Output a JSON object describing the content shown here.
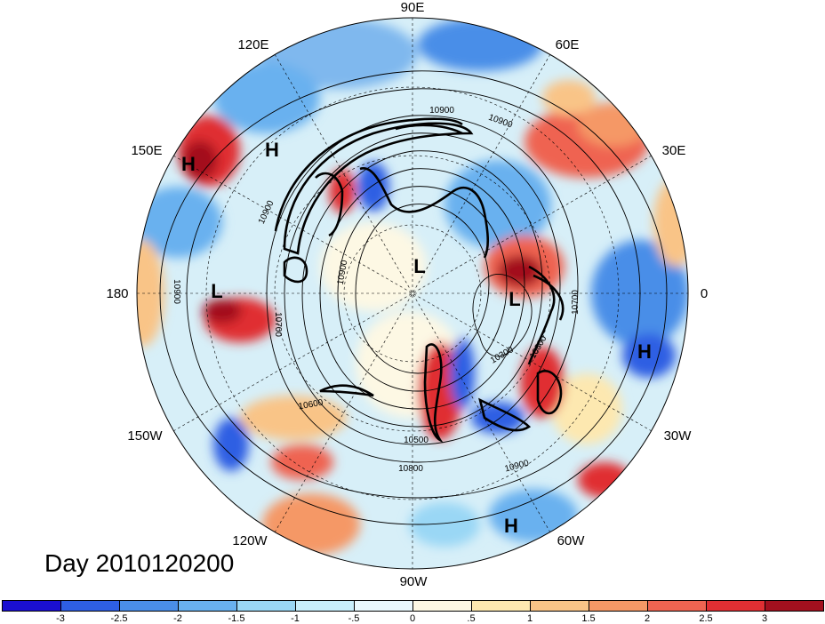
{
  "map": {
    "longitude_labels": [
      "90E",
      "60E",
      "30E",
      "0",
      "30W",
      "60W",
      "90W",
      "120W",
      "150W",
      "180",
      "150E",
      "120E"
    ],
    "contour_labels": [
      "10900",
      "10900",
      "10900",
      "10900",
      "10700",
      "10700",
      "10300",
      "10600",
      "10500",
      "10800",
      "10900",
      "10800",
      "10900"
    ],
    "pressure_centers": [
      {
        "type": "H"
      },
      {
        "type": "H"
      },
      {
        "type": "L"
      },
      {
        "type": "L"
      },
      {
        "type": "L"
      },
      {
        "type": "H"
      },
      {
        "type": "H"
      }
    ],
    "day_label": "Day 2010120200"
  },
  "colorbar": {
    "colors": [
      "#1a0fd1",
      "#2e5fe3",
      "#4a8ee8",
      "#69b1ef",
      "#9ad7f5",
      "#c8eefb",
      "#eaf8fd",
      "#fdf8e4",
      "#fde8b0",
      "#f9c487",
      "#f59866",
      "#ef6451",
      "#e02f33",
      "#a3101e"
    ],
    "tick_labels": [
      "-3",
      "-2.5",
      "-2",
      "-1.5",
      "-1",
      "-.5",
      "0",
      ".5",
      "1",
      "1.5",
      "2",
      "2.5",
      "3"
    ]
  }
}
